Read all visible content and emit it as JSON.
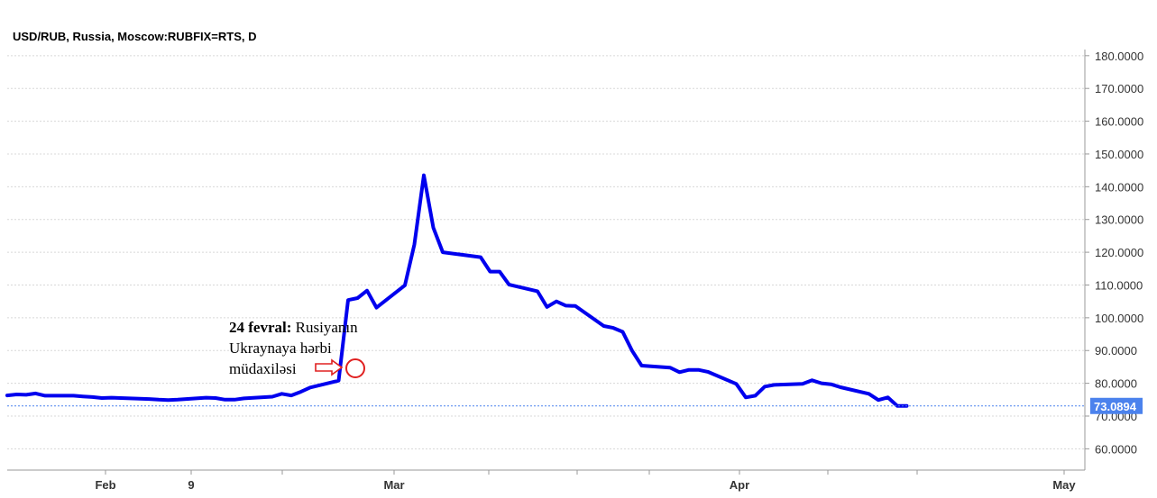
{
  "title": "USD/RUB, Russia, Moscow:RUBFIX=RTS, D",
  "chart_data": {
    "type": "line",
    "title": "USD/RUB, Russia, Moscow:RUBFIX=RTS, D",
    "xlabel": "",
    "ylabel": "",
    "ylim": [
      55,
      180
    ],
    "grid": true,
    "y_ticks": [
      "60.0000",
      "70.0000",
      "80.0000",
      "90.0000",
      "100.0000",
      "110.0000",
      "120.0000",
      "130.0000",
      "140.0000",
      "150.0000",
      "160.0000",
      "170.0000",
      "180.0000"
    ],
    "x_ticks": [
      "Feb",
      "9",
      "Mar",
      "Apr",
      "May"
    ],
    "line_color": "#0000ee",
    "last_value": {
      "label": "73.0894",
      "value": 73.0894,
      "color": "#4b82ed"
    },
    "series": [
      {
        "x": [
          "2022-01-18",
          "2022-01-19",
          "2022-01-20",
          "2022-01-21",
          "2022-01-22",
          "2022-01-25",
          "2022-01-26",
          "2022-01-27",
          "2022-01-28",
          "2022-01-29",
          "2022-02-01",
          "2022-02-02",
          "2022-02-03",
          "2022-02-04",
          "2022-02-05",
          "2022-02-08",
          "2022-02-09",
          "2022-02-10",
          "2022-02-11",
          "2022-02-12",
          "2022-02-15",
          "2022-02-16",
          "2022-02-17",
          "2022-02-18",
          "2022-02-19",
          "2022-02-22",
          "2022-02-23",
          "2022-02-24",
          "2022-02-25",
          "2022-02-26",
          "2022-03-01",
          "2022-03-02",
          "2022-03-03",
          "2022-03-04",
          "2022-03-05",
          "2022-03-09",
          "2022-03-10",
          "2022-03-11",
          "2022-03-12",
          "2022-03-15",
          "2022-03-16",
          "2022-03-17",
          "2022-03-18",
          "2022-03-19",
          "2022-03-22",
          "2022-03-23",
          "2022-03-24",
          "2022-03-25",
          "2022-03-26",
          "2022-03-29",
          "2022-03-30",
          "2022-03-31",
          "2022-04-01",
          "2022-04-02",
          "2022-04-05",
          "2022-04-06",
          "2022-04-07",
          "2022-04-08",
          "2022-04-09",
          "2022-04-12",
          "2022-04-13",
          "2022-04-14",
          "2022-04-15",
          "2022-04-16",
          "2022-04-19",
          "2022-04-20",
          "2022-04-21",
          "2022-04-22",
          "2022-04-23"
        ],
        "values": [
          76.3,
          76.6,
          76.5,
          76.9,
          76.2,
          76.2,
          76.0,
          75.8,
          75.5,
          75.6,
          75.3,
          75.2,
          75.0,
          74.9,
          75.0,
          75.6,
          75.5,
          75.0,
          75.0,
          75.4,
          75.9,
          76.8,
          76.3,
          77.4,
          78.7,
          80.8,
          105.4,
          106.0,
          108.3,
          103.1,
          109.9,
          122.4,
          143.5,
          127.5,
          120.0,
          118.5,
          114.1,
          114.1,
          110.1,
          108.1,
          103.3,
          105.0,
          103.7,
          103.6,
          97.5,
          96.9,
          95.7,
          89.9,
          85.4,
          84.8,
          83.4,
          84.1,
          84.1,
          83.5,
          79.8,
          75.7,
          76.2,
          79.0,
          79.5,
          79.8,
          80.9,
          80.0,
          79.7,
          78.8,
          76.8,
          74.9,
          75.7,
          73.1,
          73.1
        ]
      }
    ]
  },
  "annotation": {
    "date_bold": "24 fevral:",
    "line1_rest": " Rusiyanın",
    "line2": "Ukraynaya hərbi",
    "line3": "müdaxiləsi",
    "marker_color": "#e02020"
  }
}
